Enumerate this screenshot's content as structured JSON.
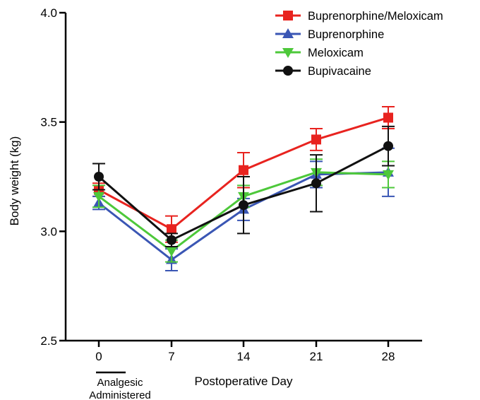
{
  "chart_data": {
    "type": "line",
    "title": "",
    "xlabel": "Postoperative Day",
    "ylabel": "Body weight (kg)",
    "x": [
      0,
      7,
      14,
      21,
      28
    ],
    "x_tick_labels": [
      "0",
      "7",
      "14",
      "21",
      "28"
    ],
    "ylim": [
      2.5,
      4.0
    ],
    "y_ticks": [
      "2.5",
      "3.0",
      "3.5",
      "4.0"
    ],
    "legend_position": "top-right",
    "annotation": "Analgesic Administered",
    "series": [
      {
        "name": "Buprenorphine/Meloxicam",
        "color": "#e8231f",
        "marker": "square",
        "values": [
          3.19,
          3.01,
          3.28,
          3.42,
          3.52
        ],
        "errors": [
          0.03,
          0.06,
          0.08,
          0.05,
          0.05
        ]
      },
      {
        "name": "Buprenorphine",
        "color": "#3a56b4",
        "marker": "triangle-up",
        "values": [
          3.13,
          2.87,
          3.1,
          3.26,
          3.27
        ],
        "errors": [
          0.03,
          0.05,
          0.05,
          0.06,
          0.11
        ]
      },
      {
        "name": "Meloxicam",
        "color": "#4dc83a",
        "marker": "triangle-down",
        "values": [
          3.16,
          2.91,
          3.16,
          3.27,
          3.26
        ],
        "errors": [
          0.05,
          0.05,
          0.05,
          0.06,
          0.06
        ]
      },
      {
        "name": "Bupivacaine",
        "color": "#111111",
        "marker": "circle",
        "values": [
          3.25,
          2.96,
          3.12,
          3.22,
          3.39
        ],
        "errors": [
          0.06,
          0.03,
          0.13,
          0.13,
          0.09
        ]
      }
    ]
  }
}
